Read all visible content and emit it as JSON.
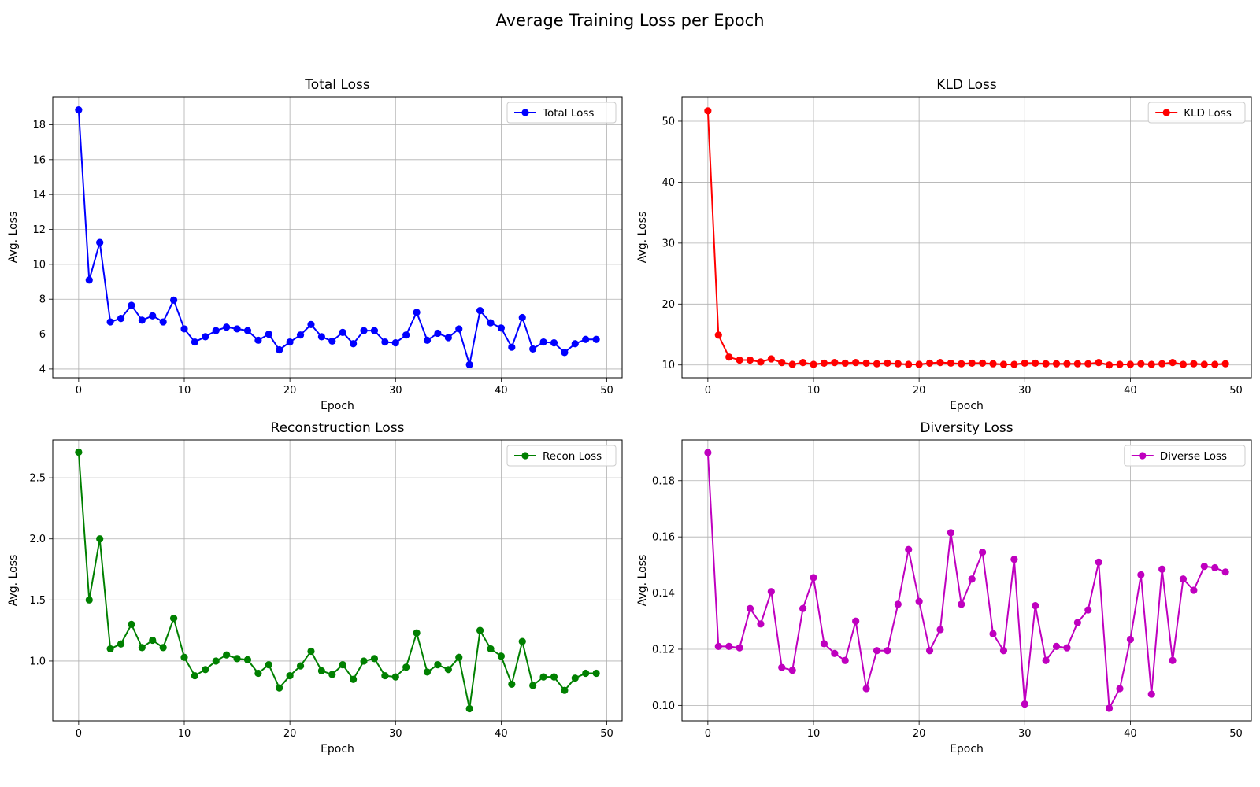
{
  "figure": {
    "title": "Average Training Loss per Epoch"
  },
  "chart_data": [
    {
      "type": "line",
      "title": "Total Loss",
      "xlabel": "Epoch",
      "ylabel": "Avg. Loss",
      "xlim": [
        -2.45,
        51.45
      ],
      "ylim": [
        3.5,
        19.6
      ],
      "xticks": [
        0,
        10,
        20,
        30,
        40,
        50
      ],
      "yticks": [
        4,
        6,
        8,
        10,
        12,
        14,
        16,
        18
      ],
      "grid": true,
      "legend_position": "top-right",
      "series": [
        {
          "name": "Total Loss",
          "color": "#0000ff",
          "x": [
            0,
            1,
            2,
            3,
            4,
            5,
            6,
            7,
            8,
            9,
            10,
            11,
            12,
            13,
            14,
            15,
            16,
            17,
            18,
            19,
            20,
            21,
            22,
            23,
            24,
            25,
            26,
            27,
            28,
            29,
            30,
            31,
            32,
            33,
            34,
            35,
            36,
            37,
            38,
            39,
            40,
            41,
            42,
            43,
            44,
            45,
            46,
            47,
            48,
            49
          ],
          "y": [
            18.85,
            9.1,
            11.25,
            6.7,
            6.9,
            7.65,
            6.8,
            7.05,
            6.7,
            7.95,
            6.3,
            5.55,
            5.85,
            6.2,
            6.4,
            6.3,
            6.2,
            5.65,
            6.0,
            5.1,
            5.55,
            5.95,
            6.55,
            5.85,
            5.6,
            6.1,
            5.45,
            6.2,
            6.2,
            5.55,
            5.5,
            5.95,
            7.25,
            5.65,
            6.05,
            5.8,
            6.3,
            4.25,
            7.35,
            6.65,
            6.35,
            5.25,
            6.95,
            5.15,
            5.55,
            5.5,
            4.95,
            5.45,
            5.7,
            5.7
          ]
        }
      ]
    },
    {
      "type": "line",
      "title": "KLD Loss",
      "xlabel": "Epoch",
      "ylabel": "Avg. Loss",
      "xlim": [
        -2.45,
        51.45
      ],
      "ylim": [
        7.9,
        54.0
      ],
      "xticks": [
        0,
        10,
        20,
        30,
        40,
        50
      ],
      "yticks": [
        10,
        20,
        30,
        40,
        50
      ],
      "grid": true,
      "legend_position": "top-right",
      "series": [
        {
          "name": "KLD Loss",
          "color": "#ff0000",
          "x": [
            0,
            1,
            2,
            3,
            4,
            5,
            6,
            7,
            8,
            9,
            10,
            11,
            12,
            13,
            14,
            15,
            16,
            17,
            18,
            19,
            20,
            21,
            22,
            23,
            24,
            25,
            26,
            27,
            28,
            29,
            30,
            31,
            32,
            33,
            34,
            35,
            36,
            37,
            38,
            39,
            40,
            41,
            42,
            43,
            44,
            45,
            46,
            47,
            48,
            49
          ],
          "y": [
            51.7,
            14.9,
            11.3,
            10.8,
            10.8,
            10.5,
            11.0,
            10.4,
            10.1,
            10.4,
            10.1,
            10.3,
            10.4,
            10.3,
            10.4,
            10.3,
            10.2,
            10.3,
            10.2,
            10.1,
            10.1,
            10.3,
            10.4,
            10.3,
            10.2,
            10.3,
            10.3,
            10.2,
            10.1,
            10.1,
            10.3,
            10.3,
            10.2,
            10.2,
            10.2,
            10.2,
            10.2,
            10.4,
            10.0,
            10.1,
            10.1,
            10.2,
            10.1,
            10.2,
            10.4,
            10.1,
            10.2,
            10.1,
            10.1,
            10.2
          ]
        }
      ]
    },
    {
      "type": "line",
      "title": "Reconstruction Loss",
      "xlabel": "Epoch",
      "ylabel": "Avg. Loss",
      "xlim": [
        -2.45,
        51.45
      ],
      "ylim": [
        0.51,
        2.81
      ],
      "xticks": [
        0,
        10,
        20,
        30,
        40,
        50
      ],
      "yticks": [
        1.0,
        1.5,
        2.0,
        2.5
      ],
      "ytick_labels": [
        "1.0",
        "1.5",
        "2.0",
        "2.5"
      ],
      "grid": true,
      "legend_position": "top-right",
      "series": [
        {
          "name": "Recon Loss",
          "color": "#008000",
          "x": [
            0,
            1,
            2,
            3,
            4,
            5,
            6,
            7,
            8,
            9,
            10,
            11,
            12,
            13,
            14,
            15,
            16,
            17,
            18,
            19,
            20,
            21,
            22,
            23,
            24,
            25,
            26,
            27,
            28,
            29,
            30,
            31,
            32,
            33,
            34,
            35,
            36,
            37,
            38,
            39,
            40,
            41,
            42,
            43,
            44,
            45,
            46,
            47,
            48,
            49
          ],
          "y": [
            2.71,
            1.5,
            2.0,
            1.1,
            1.14,
            1.3,
            1.11,
            1.17,
            1.11,
            1.35,
            1.03,
            0.88,
            0.93,
            1.0,
            1.05,
            1.02,
            1.01,
            0.9,
            0.97,
            0.78,
            0.88,
            0.96,
            1.08,
            0.92,
            0.89,
            0.97,
            0.85,
            1.0,
            1.02,
            0.88,
            0.87,
            0.95,
            1.23,
            0.91,
            0.97,
            0.93,
            1.03,
            0.61,
            1.25,
            1.1,
            1.04,
            0.81,
            1.16,
            0.8,
            0.87,
            0.87,
            0.76,
            0.86,
            0.9,
            0.9
          ]
        }
      ]
    },
    {
      "type": "line",
      "title": "Diversity Loss",
      "xlabel": "Epoch",
      "ylabel": "Avg. Loss",
      "xlim": [
        -2.45,
        51.45
      ],
      "ylim": [
        0.0945,
        0.1945
      ],
      "xticks": [
        0,
        10,
        20,
        30,
        40,
        50
      ],
      "yticks": [
        0.1,
        0.12,
        0.14,
        0.16,
        0.18
      ],
      "ytick_labels": [
        "0.10",
        "0.12",
        "0.14",
        "0.16",
        "0.18"
      ],
      "grid": true,
      "legend_position": "top-right",
      "series": [
        {
          "name": "Diverse Loss",
          "color": "#bf00bf",
          "x": [
            0,
            1,
            2,
            3,
            4,
            5,
            6,
            7,
            8,
            9,
            10,
            11,
            12,
            13,
            14,
            15,
            16,
            17,
            18,
            19,
            20,
            21,
            22,
            23,
            24,
            25,
            26,
            27,
            28,
            29,
            30,
            31,
            32,
            33,
            34,
            35,
            36,
            37,
            38,
            39,
            40,
            41,
            42,
            43,
            44,
            45,
            46,
            47,
            48,
            49
          ],
          "y": [
            0.19,
            0.121,
            0.121,
            0.1205,
            0.1345,
            0.129,
            0.1405,
            0.1135,
            0.1125,
            0.1345,
            0.1455,
            0.122,
            0.1185,
            0.116,
            0.13,
            0.106,
            0.1195,
            0.1195,
            0.136,
            0.1555,
            0.137,
            0.1195,
            0.127,
            0.1615,
            0.136,
            0.145,
            0.1545,
            0.1255,
            0.1195,
            0.152,
            0.1005,
            0.1355,
            0.116,
            0.121,
            0.1205,
            0.1295,
            0.134,
            0.151,
            0.099,
            0.106,
            0.1235,
            0.1465,
            0.104,
            0.1485,
            0.116,
            0.145,
            0.141,
            0.1495,
            0.149,
            0.1475
          ]
        }
      ]
    }
  ]
}
